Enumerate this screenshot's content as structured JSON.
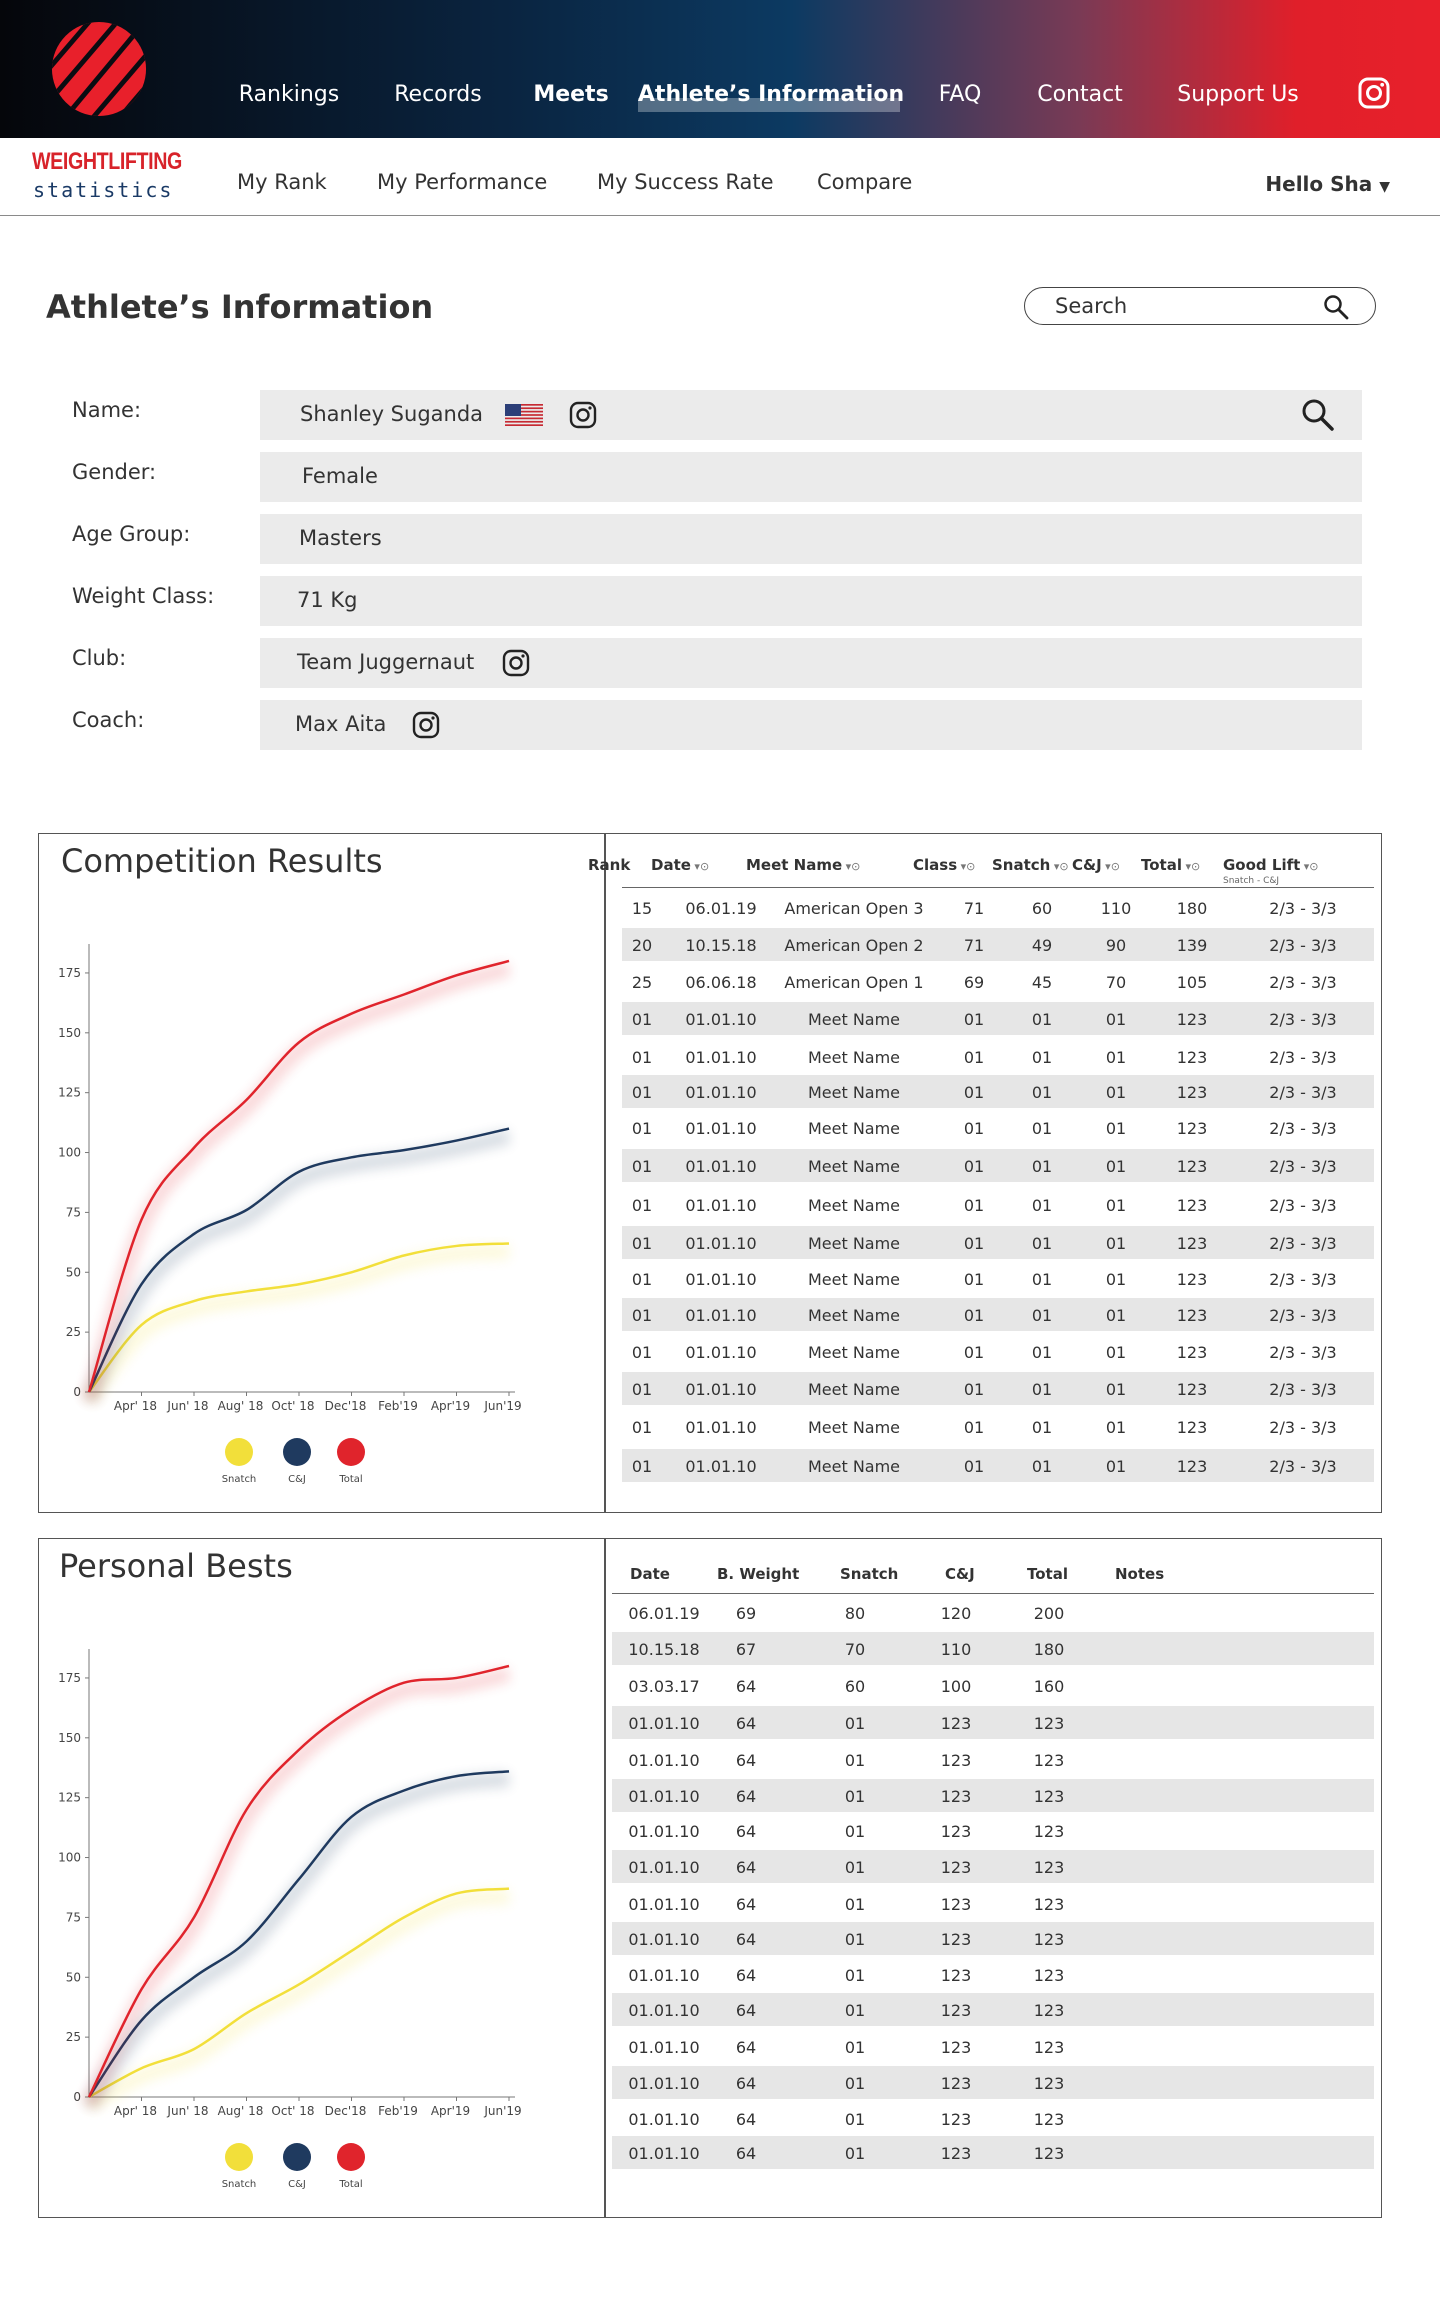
{
  "topnav": {
    "items": [
      {
        "label": "Rankings",
        "bold": false
      },
      {
        "label": "Records",
        "bold": false
      },
      {
        "label": "Meets",
        "bold": true
      },
      {
        "label": "Athlete’s Information",
        "bold": true,
        "active": true
      },
      {
        "label": "FAQ",
        "bold": false
      },
      {
        "label": "Contact",
        "bold": false
      },
      {
        "label": "Support Us",
        "bold": false
      }
    ],
    "social_icon": "instagram-icon"
  },
  "brand": {
    "line1": "WEIGHTLIFTING",
    "line2": "statistics"
  },
  "subnav": {
    "items": [
      "My Rank",
      "My Performance",
      "My Success Rate",
      "Compare"
    ],
    "user_greeting": "Hello Sha"
  },
  "page": {
    "title": "Athlete’s Information"
  },
  "search": {
    "placeholder": "Search"
  },
  "athlete": {
    "fields": [
      {
        "label": "Name:",
        "value": "Shanley Suganda",
        "flag": "us-flag-icon",
        "instagram": true,
        "search_icon": true
      },
      {
        "label": "Gender:",
        "value": "Female"
      },
      {
        "label": "Age Group:",
        "value": "Masters"
      },
      {
        "label": "Weight Class:",
        "value": "71 Kg"
      },
      {
        "label": "Club:",
        "value": "Team Juggernaut",
        "instagram": true
      },
      {
        "label": "Coach:",
        "value": "Max Aita",
        "instagram": true
      }
    ]
  },
  "colors": {
    "snatch": "#f2df3a",
    "cj": "#1f3a5f",
    "total": "#e0242c"
  },
  "competition": {
    "title": "Competition Results",
    "columns": [
      {
        "label": "Rank",
        "sortable": false
      },
      {
        "label": "Date",
        "sortable": true
      },
      {
        "label": "Meet Name",
        "sortable": true
      },
      {
        "label": "Class",
        "sortable": true
      },
      {
        "label": "Snatch",
        "sortable": true
      },
      {
        "label": "C&J",
        "sortable": true
      },
      {
        "label": "Total",
        "sortable": true
      },
      {
        "label": "Good Lift",
        "sortable": true,
        "sublabel": "Snatch - C&J"
      }
    ],
    "rows": [
      [
        "15",
        "06.01.19",
        "American Open 3",
        "71",
        "60",
        "110",
        "180",
        "2/3 - 3/3"
      ],
      [
        "20",
        "10.15.18",
        "American Open 2",
        "71",
        "49",
        "90",
        "139",
        "2/3 - 3/3"
      ],
      [
        "25",
        "06.06.18",
        "American Open 1",
        "69",
        "45",
        "70",
        "105",
        "2/3 - 3/3"
      ],
      [
        "01",
        "01.01.10",
        "Meet Name",
        "01",
        "01",
        "01",
        "123",
        "2/3 - 3/3"
      ],
      [
        "01",
        "01.01.10",
        "Meet Name",
        "01",
        "01",
        "01",
        "123",
        "2/3 - 3/3"
      ],
      [
        "01",
        "01.01.10",
        "Meet Name",
        "01",
        "01",
        "01",
        "123",
        "2/3 - 3/3"
      ],
      [
        "01",
        "01.01.10",
        "Meet Name",
        "01",
        "01",
        "01",
        "123",
        "2/3 - 3/3"
      ],
      [
        "01",
        "01.01.10",
        "Meet Name",
        "01",
        "01",
        "01",
        "123",
        "2/3 - 3/3"
      ],
      [
        "01",
        "01.01.10",
        "Meet Name",
        "01",
        "01",
        "01",
        "123",
        "2/3 - 3/3"
      ],
      [
        "01",
        "01.01.10",
        "Meet Name",
        "01",
        "01",
        "01",
        "123",
        "2/3 - 3/3"
      ],
      [
        "01",
        "01.01.10",
        "Meet Name",
        "01",
        "01",
        "01",
        "123",
        "2/3 - 3/3"
      ],
      [
        "01",
        "01.01.10",
        "Meet Name",
        "01",
        "01",
        "01",
        "123",
        "2/3 - 3/3"
      ],
      [
        "01",
        "01.01.10",
        "Meet Name",
        "01",
        "01",
        "01",
        "123",
        "2/3 - 3/3"
      ],
      [
        "01",
        "01.01.10",
        "Meet Name",
        "01",
        "01",
        "01",
        "123",
        "2/3 - 3/3"
      ],
      [
        "01",
        "01.01.10",
        "Meet Name",
        "01",
        "01",
        "01",
        "123",
        "2/3 - 3/3"
      ],
      [
        "01",
        "01.01.10",
        "Meet Name",
        "01",
        "01",
        "01",
        "123",
        "2/3 - 3/3"
      ]
    ]
  },
  "personal_bests": {
    "title": "Personal Bests",
    "columns": [
      "Date",
      "B. Weight",
      "Snatch",
      "C&J",
      "Total",
      "Notes"
    ],
    "rows": [
      [
        "06.01.19",
        "69",
        "80",
        "120",
        "200",
        ""
      ],
      [
        "10.15.18",
        "67",
        "70",
        "110",
        "180",
        ""
      ],
      [
        "03.03.17",
        "64",
        "60",
        "100",
        "160",
        ""
      ],
      [
        "01.01.10",
        "64",
        "01",
        "123",
        "123",
        ""
      ],
      [
        "01.01.10",
        "64",
        "01",
        "123",
        "123",
        ""
      ],
      [
        "01.01.10",
        "64",
        "01",
        "123",
        "123",
        ""
      ],
      [
        "01.01.10",
        "64",
        "01",
        "123",
        "123",
        ""
      ],
      [
        "01.01.10",
        "64",
        "01",
        "123",
        "123",
        ""
      ],
      [
        "01.01.10",
        "64",
        "01",
        "123",
        "123",
        ""
      ],
      [
        "01.01.10",
        "64",
        "01",
        "123",
        "123",
        ""
      ],
      [
        "01.01.10",
        "64",
        "01",
        "123",
        "123",
        ""
      ],
      [
        "01.01.10",
        "64",
        "01",
        "123",
        "123",
        ""
      ],
      [
        "01.01.10",
        "64",
        "01",
        "123",
        "123",
        ""
      ],
      [
        "01.01.10",
        "64",
        "01",
        "123",
        "123",
        ""
      ],
      [
        "01.01.10",
        "64",
        "01",
        "123",
        "123",
        ""
      ],
      [
        "01.01.10",
        "64",
        "01",
        "123",
        "123",
        ""
      ]
    ]
  },
  "chart_data": [
    {
      "type": "line",
      "title": "",
      "x": [
        "",
        "Apr' 18",
        "Jun' 18",
        "Aug' 18",
        "Oct' 18",
        "Dec'18",
        "Feb'19",
        "Apr'19",
        "Jun'19"
      ],
      "y_ticks": [
        0,
        25,
        50,
        75,
        100,
        125,
        150,
        175
      ],
      "ylim": [
        0,
        185
      ],
      "grid": false,
      "legend": "bottom",
      "series": [
        {
          "name": "Snatch",
          "color": "#f2df3a",
          "values": [
            0,
            28,
            38,
            42,
            45,
            50,
            57,
            61,
            62
          ]
        },
        {
          "name": "C&J",
          "color": "#1f3a5f",
          "values": [
            0,
            45,
            66,
            76,
            92,
            98,
            101,
            105,
            110
          ]
        },
        {
          "name": "Total",
          "color": "#e0242c",
          "values": [
            0,
            72,
            102,
            122,
            146,
            158,
            166,
            174,
            180
          ]
        }
      ]
    },
    {
      "type": "line",
      "title": "",
      "x": [
        "",
        "Apr' 18",
        "Jun' 18",
        "Aug' 18",
        "Oct' 18",
        "Dec'18",
        "Feb'19",
        "Apr'19",
        "Jun'19"
      ],
      "y_ticks": [
        0,
        25,
        50,
        75,
        100,
        125,
        150,
        175
      ],
      "ylim": [
        0,
        185
      ],
      "grid": false,
      "legend": "bottom",
      "series": [
        {
          "name": "Snatch",
          "color": "#f2df3a",
          "values": [
            0,
            12,
            20,
            35,
            47,
            61,
            75,
            85,
            87
          ]
        },
        {
          "name": "C&J",
          "color": "#1f3a5f",
          "values": [
            0,
            32,
            50,
            65,
            91,
            117,
            128,
            134,
            136
          ]
        },
        {
          "name": "Total",
          "color": "#e0242c",
          "values": [
            0,
            45,
            75,
            120,
            145,
            162,
            173,
            175,
            180
          ]
        }
      ]
    }
  ]
}
